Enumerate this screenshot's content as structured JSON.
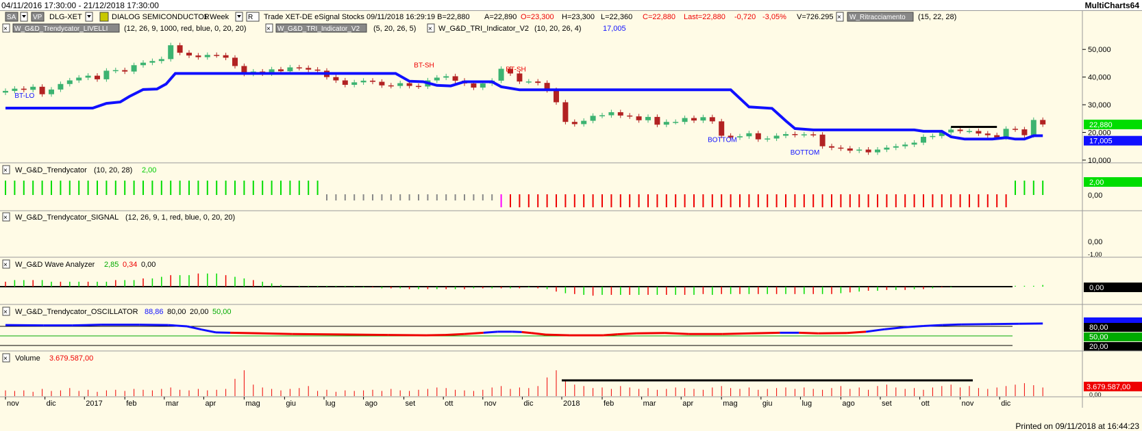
{
  "window": {
    "title": "04/11/2016 17:30:00 - 21/12/2018 17:30:00",
    "app": "MultiCharts64",
    "printed": "Printed on 09/11/2018 at 16:44:23"
  },
  "colors": {
    "background": "#fffbe6",
    "up": "#3cb371",
    "down": "#b22222",
    "level": "#1010ff",
    "green_bar": "#00dd00",
    "red_bar": "#ee0000",
    "gray_bar": "#888888",
    "magenta_bar": "#ff00ff"
  },
  "header": {
    "symbol_row": {
      "mode": "SA",
      "vp": "VP",
      "symbol": "DLG-XET",
      "name": "DIALOG SEMICONDUCTOR",
      "interval": "1 Week",
      "r_label": "R",
      "info": "Trade  XET-DE  eSignal  Stocks  09/11/2018  16:29:19  B=22,880",
      "ask": "A=22,890",
      "open": "O=23,300",
      "high": "H=23,300",
      "low": "L=22,360",
      "close": "C=22,880",
      "last": "Last=22,880",
      "change": "-0,720",
      "change_pct": "-3,05%",
      "volume": "V=726.295",
      "study3_name": "W_Ritracciamento",
      "study3_params": "(15,  22,  28)"
    },
    "study_row": {
      "study1_name": "W_G&D_Trendycator_LIVELLI",
      "study1_params": "(12,  26,  9,  1000,  red,  blue,  0,  20,  20)",
      "study2_name": "W_G&D_TRI_Indicator_V2",
      "study2_params": "(5,  20,  26,  5)",
      "study4_name": "W_G&D_TRI_Indicator_V2",
      "study4_params": "(10,  20,  26,  4)",
      "study4_value": "17,005"
    }
  },
  "panels": {
    "trendycator": {
      "name": "W_G&D_Trendycator",
      "params": "(10,  20,  28)",
      "value": "2,00",
      "scale_label": "0,00"
    },
    "signal": {
      "name": "W_G&D_Trendycator_SIGNAL",
      "params": "(12,  26,  9,  1,  red,  blue,  0,  20,  20)",
      "scale_label": "0,00",
      "scale_label2": "-1,00"
    },
    "wave": {
      "name": "W_G&D Wave Analyzer",
      "v1": "2,85",
      "v2": "0,34",
      "v3": "0,00",
      "value": "0,00"
    },
    "oscillator": {
      "name": "W_G&D_Trendycator_OSCILLATOR",
      "v1": "88,86",
      "v2": "80,00",
      "v3": "20,00",
      "v4": "50,00",
      "lvl80": "80,00",
      "lvl50": "50,00",
      "lvl20": "20,00"
    },
    "volume": {
      "name": "Volume",
      "value": "3.679.587,00",
      "scale_label": "0,00"
    }
  },
  "chart_data": {
    "type": "candlestick",
    "ylim": [
      10000,
      55000
    ],
    "y_ticks": [
      "50,000",
      "40,000",
      "30,000",
      "20,000",
      "10,000"
    ],
    "y_tick_values": [
      50000,
      40000,
      30000,
      20000,
      10000
    ],
    "current_price_label": "22,880",
    "current_price": 22880,
    "level_label": "17,005",
    "level_value": 17005,
    "x_labels": [
      "nov",
      "dic",
      "2017",
      "feb",
      "mar",
      "apr",
      "mag",
      "giu",
      "lug",
      "ago",
      "set",
      "ott",
      "nov",
      "dic",
      "2018",
      "feb",
      "mar",
      "apr",
      "mag",
      "giu",
      "lug",
      "ago",
      "set",
      "ott",
      "nov",
      "dic"
    ],
    "x_label_index": [
      0,
      4.3,
      8.6,
      13,
      17.3,
      21.6,
      26,
      30.4,
      34.7,
      39,
      43.4,
      47.7,
      52,
      56.3,
      60.6,
      65,
      69.3,
      73.6,
      78,
      82.3,
      86.6,
      91,
      95.3,
      99.6,
      104,
      108.3
    ],
    "annotations": [
      {
        "text": "BT-LO",
        "i": 1,
        "price": 32500
      },
      {
        "text": "BT-SH",
        "i": 44.5,
        "price": 43500
      },
      {
        "text": "BT-SH",
        "i": 54.5,
        "price": 42000
      },
      {
        "text": "BOTTOM",
        "i": 76.5,
        "price": 16500
      },
      {
        "text": "BOTTOM",
        "i": 85.5,
        "price": 12000
      }
    ],
    "closes": [
      35000,
      35800,
      35400,
      36500,
      33800,
      35500,
      37500,
      38800,
      39800,
      40500,
      39200,
      42300,
      42500,
      42000,
      44300,
      45200,
      45800,
      46500,
      51500,
      48800,
      47800,
      47200,
      48000,
      47900,
      47000,
      44000,
      41200,
      42000,
      41300,
      42800,
      42100,
      43500,
      43300,
      42700,
      42300,
      40000,
      38800,
      37200,
      38100,
      38700,
      38300,
      37000,
      36800,
      37800,
      36800,
      36600,
      38800,
      39800,
      40300,
      38700,
      37700,
      36200,
      37700,
      38700,
      43000,
      41300,
      38400,
      38400,
      37900,
      35300,
      30900,
      23800,
      23000,
      24200,
      26000,
      26200,
      27300,
      26100,
      25800,
      24400,
      25600,
      22800,
      23800,
      23800,
      25200,
      24300,
      25500,
      24000,
      18800,
      18200,
      18600,
      19700,
      17500,
      17800,
      18800,
      19400,
      19100,
      19300,
      19200,
      15000,
      14500,
      14200,
      13400,
      13800,
      12800,
      13800,
      14500,
      15000,
      15600,
      16300,
      18400,
      18700,
      20000,
      21000,
      20500,
      20500,
      19600,
      19000,
      18200,
      21300,
      21100,
      19000,
      24500,
      22880
    ],
    "level_line": [
      [
        0,
        28800
      ],
      [
        20,
        28800
      ],
      [
        23,
        30800
      ],
      [
        26,
        31000
      ],
      [
        28,
        33300
      ],
      [
        32,
        35300
      ],
      [
        40,
        35700
      ],
      [
        44,
        41600
      ],
      [
        85,
        41600
      ],
      [
        91,
        36800
      ],
      [
        95,
        35600
      ],
      [
        98,
        35600
      ],
      [
        102,
        37700
      ],
      [
        119,
        37700
      ],
      [
        121,
        35700
      ],
      [
        126,
        37900
      ],
      [
        127,
        38500
      ],
      [
        146,
        38200
      ],
      [
        164,
        38700
      ],
      [
        165,
        35300
      ],
      [
        190,
        35300
      ],
      [
        201,
        35000
      ],
      [
        219,
        34800
      ],
      [
        236,
        34600
      ],
      [
        253,
        34000
      ],
      [
        270,
        33900
      ],
      [
        287,
        34100
      ],
      [
        304,
        34000
      ],
      [
        321,
        34000
      ],
      [
        338,
        34000
      ],
      [
        355,
        34000
      ],
      [
        372,
        34100
      ],
      [
        389,
        34100
      ],
      [
        406,
        34100
      ],
      [
        423,
        34000
      ],
      [
        440,
        34000
      ],
      [
        457,
        33800
      ],
      [
        474,
        33800
      ],
      [
        491,
        33800
      ],
      [
        508,
        33900
      ],
      [
        525,
        33900
      ],
      [
        542,
        33900
      ],
      [
        559,
        34000
      ],
      [
        576,
        34000
      ],
      [
        593,
        34000
      ],
      [
        610,
        34000
      ],
      [
        627,
        34000
      ],
      [
        644,
        34000
      ],
      [
        661,
        34000
      ],
      [
        678,
        34000
      ],
      [
        695,
        34000
      ],
      [
        712,
        34000
      ],
      [
        729,
        34000
      ]
    ],
    "resistance": {
      "from": 103,
      "to": 108,
      "price": 22000
    },
    "trendycator_colors": [
      "G",
      "G",
      "G",
      "G",
      "G",
      "G",
      "G",
      "G",
      "G",
      "G",
      "G",
      "G",
      "G",
      "G",
      "G",
      "G",
      "G",
      "G",
      "G",
      "G",
      "G",
      "G",
      "G",
      "G",
      "G",
      "G",
      "G",
      "G",
      "G",
      "G",
      "G",
      "G",
      "G",
      "G",
      "G",
      "S",
      "S",
      "S",
      "S",
      "S",
      "S",
      "S",
      "S",
      "S",
      "S",
      "S",
      "S",
      "S",
      "S",
      "S",
      "S",
      "S",
      "S",
      "S",
      "M",
      "R",
      "R",
      "R",
      "R",
      "R",
      "R",
      "R",
      "R",
      "R",
      "R",
      "R",
      "R",
      "R",
      "R",
      "R",
      "R",
      "R",
      "R",
      "R",
      "R",
      "R",
      "R",
      "R",
      "R",
      "R",
      "R",
      "R",
      "R",
      "R",
      "R",
      "R",
      "R",
      "R",
      "R",
      "R",
      "R",
      "R",
      "R",
      "R",
      "R",
      "R",
      "R",
      "R",
      "R",
      "R",
      "R",
      "R",
      "R",
      "R",
      "R",
      "R",
      "R",
      "R",
      "R",
      "R",
      "G",
      "G",
      "G",
      "G"
    ],
    "wave": [
      3,
      4,
      4,
      4,
      4,
      3,
      3,
      3,
      3,
      3,
      3,
      3,
      4,
      4,
      4,
      5,
      5,
      6,
      7,
      7,
      7,
      8,
      8,
      8,
      7,
      6,
      5,
      4,
      3,
      2,
      1,
      0,
      0.5,
      0.5,
      0.5,
      0.5,
      0.5,
      0.5,
      0.5,
      -0.5,
      -0.5,
      -1,
      -1,
      -1,
      -1.5,
      -1.5,
      -1.5,
      -1.5,
      -1.5,
      -1.5,
      -1.5,
      -1,
      -1,
      -1,
      -1,
      -1,
      -1,
      -0.5,
      -1,
      -1.5,
      -3,
      -4,
      -4.5,
      -5,
      -5.5,
      -5,
      -5,
      -5,
      -5,
      -5,
      -5,
      -5,
      -5,
      -5,
      -5,
      -5,
      -4.5,
      -5,
      -4.5,
      -4.5,
      -4.5,
      -4.5,
      -4.5,
      -4.5,
      -4.5,
      -4.5,
      -4.5,
      -4.5,
      -4.5,
      -4.5,
      -4.5,
      -4,
      -3.5,
      -3,
      -2.5,
      -2.5,
      -2,
      -2,
      -2,
      -1.5,
      -1.5,
      -1,
      -0.5,
      -0.5,
      0,
      0,
      0,
      0,
      0,
      0,
      0.5,
      0.5,
      0.5,
      1
    ],
    "oscillator": [
      [
        0,
        84
      ],
      [
        8,
        83
      ],
      [
        14,
        83
      ],
      [
        20,
        85
      ],
      [
        28,
        85
      ],
      [
        34,
        84
      ],
      [
        38,
        80
      ],
      [
        41,
        70
      ],
      [
        44,
        61
      ],
      [
        47,
        60
      ],
      [
        60,
        56
      ],
      [
        80,
        53
      ],
      [
        88,
        52
      ],
      [
        92,
        53
      ],
      [
        96,
        56
      ],
      [
        100,
        60
      ],
      [
        103,
        63
      ],
      [
        106,
        63
      ],
      [
        108,
        62
      ],
      [
        110,
        59
      ],
      [
        113,
        54
      ],
      [
        118,
        52
      ],
      [
        125,
        52
      ],
      [
        128,
        55
      ],
      [
        132,
        58
      ],
      [
        138,
        59
      ],
      [
        143,
        56
      ],
      [
        150,
        56
      ],
      [
        156,
        58
      ],
      [
        162,
        60
      ],
      [
        166,
        60
      ],
      [
        170,
        58
      ],
      [
        176,
        59
      ],
      [
        180,
        63
      ],
      [
        184,
        71
      ],
      [
        188,
        77
      ],
      [
        192,
        81
      ],
      [
        196,
        84
      ],
      [
        200,
        86
      ],
      [
        206,
        87
      ],
      [
        212,
        88
      ],
      [
        217,
        88.9
      ]
    ],
    "volume": [
      20,
      18,
      20,
      15,
      25,
      18,
      20,
      28,
      18,
      22,
      15,
      20,
      22,
      18,
      25,
      22,
      20,
      25,
      30,
      22,
      20,
      25,
      20,
      22,
      25,
      60,
      90,
      40,
      30,
      25,
      20,
      25,
      28,
      35,
      18,
      22,
      15,
      20,
      18,
      20,
      22,
      18,
      25,
      20,
      18,
      22,
      25,
      30,
      28,
      22,
      20,
      18,
      22,
      30,
      35,
      25,
      30,
      28,
      35,
      65,
      90,
      55,
      40,
      35,
      28,
      30,
      25,
      35,
      30,
      25,
      28,
      22,
      25,
      30,
      28,
      25,
      22,
      30,
      35,
      28,
      25,
      30,
      22,
      25,
      28,
      30,
      25,
      30,
      25,
      22,
      28,
      35,
      25,
      30,
      22,
      35,
      40,
      30,
      25,
      28,
      22,
      30,
      35,
      40,
      30,
      35,
      28,
      25,
      30,
      35,
      40,
      45,
      38,
      30
    ]
  }
}
